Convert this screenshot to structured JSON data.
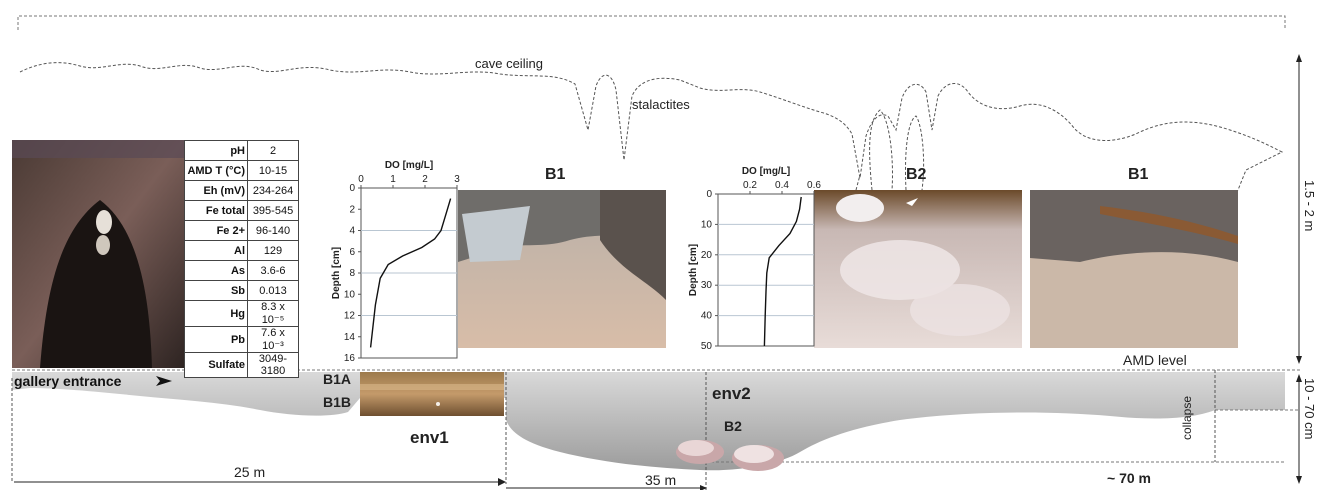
{
  "labels": {
    "cave_ceiling": "cave ceiling",
    "stalactites": "stalactites",
    "gallery_entrance": "gallery entrance",
    "amd_level": "AMD level",
    "b1a": "B1A",
    "b1b": "B1B",
    "env1": "env1",
    "env2": "env2",
    "b2_bottom": "B2",
    "collapse": "collapse",
    "photo_b1_left": "B1",
    "photo_b2": "B2",
    "photo_b1_right": "B1"
  },
  "dimensions": {
    "height_upper": "1.5 - 2 m",
    "height_lower": "10 - 70 cm",
    "dist_25": "25 m",
    "dist_35": "35 m",
    "dist_70": "~ 70 m"
  },
  "chemistry_table": [
    {
      "key": "pH",
      "value": "2"
    },
    {
      "key": "AMD T (°C)",
      "value": "10-15"
    },
    {
      "key": "Eh (mV)",
      "value": "234-264"
    },
    {
      "key": "Fe total",
      "value": "395-545"
    },
    {
      "key": "Fe 2+",
      "value": "96-140"
    },
    {
      "key": "Al",
      "value": "129"
    },
    {
      "key": "As",
      "value": "3.6-6"
    },
    {
      "key": "Sb",
      "value": "0.013"
    },
    {
      "key": "Hg",
      "value": "8.3 x 10⁻⁵"
    },
    {
      "key": "Pb",
      "value": "7.6 x 10⁻³"
    },
    {
      "key": "Sulfate",
      "value": "3049-3180"
    }
  ],
  "colors": {
    "water": "#cfcfcf",
    "dashed_line": "#555555",
    "photo_rock": "#6b5a52",
    "photo_sediment": "#d2b8a2"
  },
  "chart_data": [
    {
      "type": "line",
      "title": "",
      "xlabel": "DO [mg/L]",
      "ylabel": "Depth [cm]",
      "xlim": [
        0,
        3
      ],
      "ylim": [
        0,
        16
      ],
      "y_inverted": true,
      "xticks": [
        0,
        1,
        2,
        3
      ],
      "yticks": [
        0,
        2,
        4,
        6,
        8,
        10,
        12,
        14,
        16
      ],
      "gridlines_y": [
        4,
        8,
        12
      ],
      "series": [
        {
          "x": [
            2.8,
            2.7,
            2.6,
            2.5,
            2.3,
            1.9,
            1.3,
            0.85,
            0.6,
            0.45,
            0.3
          ],
          "y": [
            1,
            2,
            3,
            4,
            4.8,
            5.6,
            6.4,
            7.2,
            8.5,
            11,
            15
          ]
        }
      ]
    },
    {
      "type": "line",
      "title": "",
      "xlabel": "DO [mg/L]",
      "ylabel": "Depth [cm]",
      "xlim": [
        0,
        0.6
      ],
      "ylim": [
        0,
        50
      ],
      "y_inverted": true,
      "xticks": [
        0.2,
        0.4,
        0.6
      ],
      "xtick_labels": [
        "0.2",
        "0.4",
        "0.6"
      ],
      "yticks": [
        0,
        10,
        20,
        30,
        40,
        50
      ],
      "gridlines_y": [
        10,
        20,
        30,
        40
      ],
      "series": [
        {
          "x": [
            0.52,
            0.51,
            0.49,
            0.45,
            0.38,
            0.32,
            0.305,
            0.3,
            0.295,
            0.29
          ],
          "y": [
            1,
            5,
            9,
            13,
            17,
            21,
            26,
            32,
            40,
            50
          ]
        }
      ]
    }
  ]
}
